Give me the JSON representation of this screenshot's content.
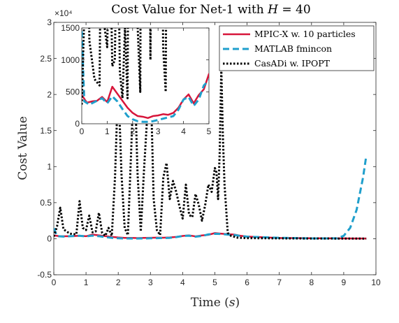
{
  "chart_data": {
    "type": "line",
    "title": "Cost Value for Net-1 with H = 40",
    "title_parts": {
      "prefix": "Cost Value for Net-1 with ",
      "var": "H",
      "suffix": " = 40"
    },
    "xlabel": "Time (s)",
    "xlabel_parts": {
      "prefix": "Time (",
      "var": "s",
      "suffix": ")"
    },
    "ylabel": "Cost Value",
    "y_exponent_label": "×10⁴",
    "xlim": [
      0,
      10
    ],
    "ylim": [
      -5000,
      30000
    ],
    "xticks": [
      0,
      1,
      2,
      3,
      4,
      5,
      6,
      7,
      8,
      9,
      10
    ],
    "yticks": [
      -5000,
      0,
      5000,
      10000,
      15000,
      20000,
      25000,
      30000
    ],
    "ytick_labels": [
      "-0.5",
      "0",
      "0.5",
      "1",
      "1.5",
      "2",
      "2.5",
      "3"
    ],
    "grid": false,
    "legend_position": "top-right",
    "series": [
      {
        "name": "MPIC-X w. 10 particles",
        "color": "#d7153a",
        "style": "solid",
        "x": [
          0,
          0.2,
          0.4,
          0.6,
          0.8,
          1.0,
          1.2,
          1.4,
          1.6,
          1.8,
          2.0,
          2.2,
          2.4,
          2.6,
          2.8,
          3.0,
          3.2,
          3.4,
          3.6,
          3.8,
          4.0,
          4.2,
          4.4,
          4.6,
          4.8,
          5.0,
          5.2,
          5.4,
          5.6,
          5.8,
          6.0,
          6.5,
          7.0,
          8.0,
          9.0,
          9.7
        ],
        "y": [
          450,
          330,
          350,
          360,
          420,
          340,
          580,
          470,
          360,
          250,
          170,
          120,
          110,
          90,
          120,
          130,
          150,
          140,
          170,
          250,
          380,
          460,
          320,
          450,
          540,
          780,
          700,
          630,
          580,
          400,
          300,
          200,
          100,
          60,
          40,
          30
        ]
      },
      {
        "name": "MATLAB fmincon",
        "color": "#1f9fcc",
        "style": "dashed",
        "x": [
          0,
          0.1,
          0.3,
          0.5,
          0.8,
          1.0,
          1.2,
          1.4,
          1.6,
          1.8,
          2.0,
          2.2,
          2.4,
          2.6,
          2.8,
          3.0,
          3.2,
          3.4,
          3.6,
          3.8,
          4.0,
          4.2,
          4.4,
          4.6,
          4.8,
          5.0,
          5.2,
          5.4,
          5.6,
          5.8,
          6.0,
          7.0,
          8.0,
          8.8,
          9.0,
          9.2,
          9.4,
          9.6,
          9.7
        ],
        "y": [
          1450,
          350,
          300,
          340,
          400,
          320,
          430,
          350,
          230,
          120,
          70,
          40,
          30,
          30,
          40,
          60,
          80,
          100,
          120,
          220,
          380,
          420,
          280,
          380,
          600,
          680,
          650,
          580,
          520,
          380,
          280,
          120,
          40,
          50,
          400,
          1500,
          4000,
          8500,
          11500
        ]
      },
      {
        "name": "CasADi w. IPOPT",
        "color": "#000000",
        "style": "dotted",
        "x": [
          0,
          0.1,
          0.2,
          0.3,
          0.5,
          0.7,
          0.8,
          0.9,
          1.0,
          1.1,
          1.2,
          1.3,
          1.4,
          1.5,
          1.6,
          1.7,
          1.8,
          1.9,
          2.0,
          2.1,
          2.2,
          2.3,
          2.4,
          2.5,
          2.6,
          2.7,
          2.8,
          2.9,
          3.0,
          3.1,
          3.2,
          3.3,
          3.4,
          3.5,
          3.6,
          3.7,
          3.8,
          3.9,
          4.0,
          4.1,
          4.2,
          4.3,
          4.4,
          4.5,
          4.6,
          4.7,
          4.8,
          4.9,
          5.0,
          5.05,
          5.1,
          5.15,
          5.2,
          5.25,
          5.3,
          5.4,
          5.5,
          5.7,
          6.0,
          7.0,
          8.0,
          9.0,
          9.7
        ],
        "y": [
          300,
          1700,
          4300,
          1300,
          700,
          600,
          5200,
          1500,
          1200,
          3200,
          900,
          1000,
          3600,
          800,
          400,
          1500,
          400,
          8500,
          22000,
          9000,
          1500,
          500,
          12000,
          24000,
          9000,
          1000,
          9500,
          17000,
          23000,
          5500,
          1200,
          500,
          8500,
          10500,
          5500,
          8000,
          6500,
          4500,
          2800,
          7500,
          3300,
          3000,
          6200,
          4700,
          2500,
          4700,
          7500,
          6500,
          9800,
          9200,
          5500,
          12000,
          23500,
          14000,
          7500,
          800,
          400,
          150,
          80,
          50,
          30,
          20,
          10
        ]
      }
    ],
    "inset": {
      "xlim": [
        0,
        5
      ],
      "ylim": [
        0,
        1500
      ],
      "xticks": [
        0,
        1,
        2,
        3,
        4,
        5
      ],
      "yticks": [
        0,
        500,
        1000,
        1500
      ],
      "grid": false
    }
  }
}
